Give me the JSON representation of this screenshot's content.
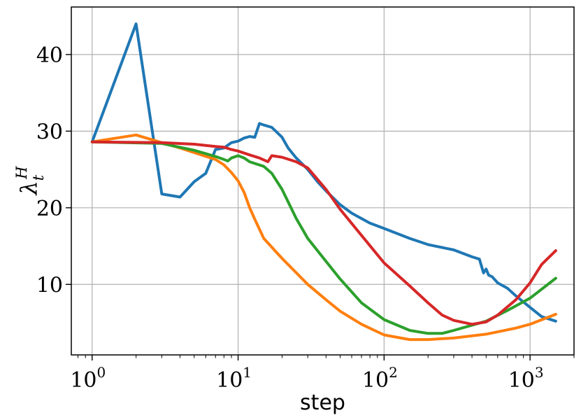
{
  "chart_data": {
    "type": "line",
    "xlabel": "step",
    "ylabel": "λ",
    "ylabel_sup": "H",
    "ylabel_sub": "t",
    "x_scale": "log",
    "xlim": [
      0.72,
      2000
    ],
    "ylim": [
      0.8,
      46.2
    ],
    "grid": true,
    "legend": "none",
    "x_ticks": [
      {
        "value": 1,
        "base": "10",
        "exp": "0"
      },
      {
        "value": 10,
        "base": "10",
        "exp": "1"
      },
      {
        "value": 100,
        "base": "10",
        "exp": "2"
      },
      {
        "value": 1000,
        "base": "10",
        "exp": "3"
      }
    ],
    "y_ticks": [
      {
        "value": 10,
        "label": "10"
      },
      {
        "value": 20,
        "label": "20"
      },
      {
        "value": 30,
        "label": "30"
      },
      {
        "value": 40,
        "label": "40"
      }
    ],
    "series": [
      {
        "color": "#1f77b4",
        "points": [
          [
            1,
            28.6
          ],
          [
            2,
            44
          ],
          [
            3,
            21.8
          ],
          [
            4,
            21.4
          ],
          [
            5,
            23.4
          ],
          [
            6,
            24.5
          ],
          [
            7,
            27.6
          ],
          [
            8,
            27.8
          ],
          [
            9,
            28.5
          ],
          [
            10,
            28.7
          ],
          [
            11,
            29.1
          ],
          [
            12,
            29.3
          ],
          [
            13,
            29.2
          ],
          [
            14,
            31
          ],
          [
            15,
            30.8
          ],
          [
            17,
            30.5
          ],
          [
            20,
            29.2
          ],
          [
            22,
            27.8
          ],
          [
            25,
            26.5
          ],
          [
            30,
            25
          ],
          [
            35,
            23.4
          ],
          [
            40,
            22.2
          ],
          [
            50,
            20.4
          ],
          [
            60,
            19.3
          ],
          [
            80,
            18
          ],
          [
            100,
            17.3
          ],
          [
            150,
            16
          ],
          [
            200,
            15.2
          ],
          [
            300,
            14.5
          ],
          [
            400,
            13.6
          ],
          [
            450,
            13.3
          ],
          [
            480,
            11.5
          ],
          [
            500,
            12
          ],
          [
            520,
            11.2
          ],
          [
            550,
            11
          ],
          [
            600,
            10.2
          ],
          [
            700,
            9.5
          ],
          [
            800,
            8.5
          ],
          [
            1000,
            7
          ],
          [
            1200,
            5.8
          ],
          [
            1500,
            5.2
          ]
        ]
      },
      {
        "color": "#ff7f0e",
        "points": [
          [
            1,
            28.6
          ],
          [
            2,
            29.5
          ],
          [
            3,
            28.5
          ],
          [
            4,
            27.8
          ],
          [
            5,
            27.2
          ],
          [
            7,
            26.3
          ],
          [
            8,
            25.6
          ],
          [
            9,
            24.6
          ],
          [
            10,
            23.5
          ],
          [
            11,
            22
          ],
          [
            12,
            20
          ],
          [
            13,
            18.5
          ],
          [
            15,
            16
          ],
          [
            20,
            13.4
          ],
          [
            30,
            10
          ],
          [
            40,
            8
          ],
          [
            50,
            6.5
          ],
          [
            70,
            4.8
          ],
          [
            100,
            3.4
          ],
          [
            150,
            2.8
          ],
          [
            200,
            2.8
          ],
          [
            300,
            3
          ],
          [
            500,
            3.5
          ],
          [
            800,
            4.3
          ],
          [
            1000,
            4.8
          ],
          [
            1500,
            6.1
          ]
        ]
      },
      {
        "color": "#2ca02c",
        "points": [
          [
            1,
            28.6
          ],
          [
            3,
            28.4
          ],
          [
            5,
            27.5
          ],
          [
            7,
            26.7
          ],
          [
            8,
            26.3
          ],
          [
            8.5,
            26.1
          ],
          [
            9,
            26.5
          ],
          [
            10,
            26.8
          ],
          [
            11,
            26.5
          ],
          [
            12,
            26
          ],
          [
            15,
            25.4
          ],
          [
            17,
            24.5
          ],
          [
            20,
            22.4
          ],
          [
            25,
            18.6
          ],
          [
            30,
            16
          ],
          [
            40,
            13
          ],
          [
            50,
            10.7
          ],
          [
            70,
            7.6
          ],
          [
            100,
            5.4
          ],
          [
            150,
            4
          ],
          [
            200,
            3.6
          ],
          [
            250,
            3.6
          ],
          [
            300,
            4
          ],
          [
            500,
            5.2
          ],
          [
            700,
            6.6
          ],
          [
            1000,
            8.2
          ],
          [
            1500,
            10.8
          ]
        ]
      },
      {
        "color": "#d62728",
        "points": [
          [
            1,
            28.6
          ],
          [
            3,
            28.5
          ],
          [
            5,
            28.3
          ],
          [
            7,
            28
          ],
          [
            8,
            27.9
          ],
          [
            9,
            27.6
          ],
          [
            10,
            27.4
          ],
          [
            12,
            26.9
          ],
          [
            14,
            26.5
          ],
          [
            16,
            26
          ],
          [
            17,
            26.8
          ],
          [
            20,
            26.6
          ],
          [
            25,
            26
          ],
          [
            30,
            25.2
          ],
          [
            40,
            22.4
          ],
          [
            50,
            19.8
          ],
          [
            70,
            16.4
          ],
          [
            100,
            12.8
          ],
          [
            150,
            9.8
          ],
          [
            200,
            7.6
          ],
          [
            250,
            6
          ],
          [
            300,
            5.3
          ],
          [
            400,
            4.8
          ],
          [
            500,
            5.1
          ],
          [
            600,
            6
          ],
          [
            800,
            8
          ],
          [
            1000,
            10.2
          ],
          [
            1200,
            12.6
          ],
          [
            1500,
            14.4
          ]
        ]
      }
    ]
  }
}
